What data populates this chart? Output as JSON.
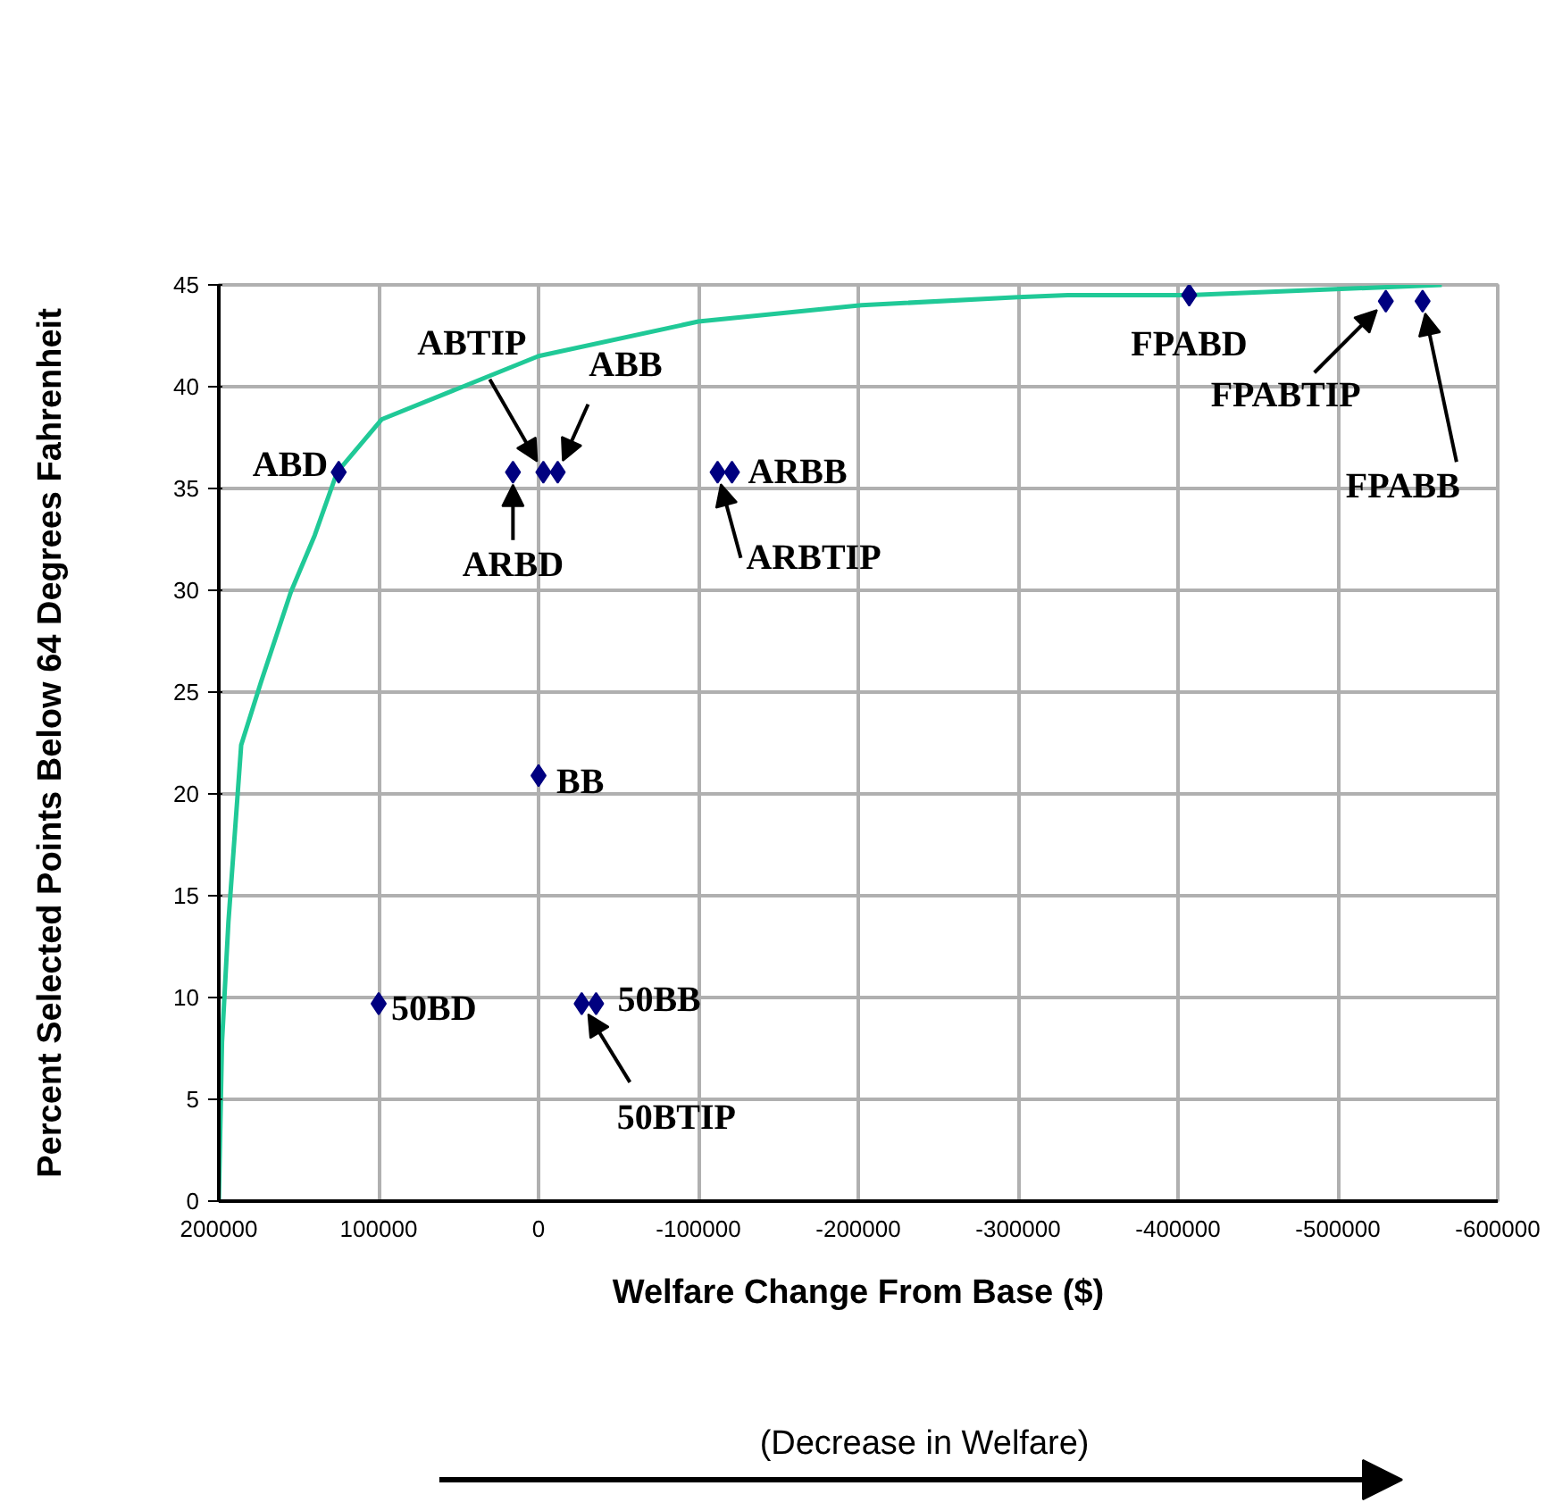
{
  "chart_data": {
    "type": "scatter",
    "xlabel": "Welfare Change From Base ($)",
    "ylabel": "Percent Selected Points Below 64 Degrees Fahrenheit",
    "xlim": [
      200000,
      -600000
    ],
    "ylim": [
      0,
      45
    ],
    "xticks": [
      200000,
      100000,
      0,
      -100000,
      -200000,
      -300000,
      -400000,
      -500000,
      -600000
    ],
    "yticks": [
      0,
      5,
      10,
      15,
      20,
      25,
      30,
      35,
      40,
      45
    ],
    "grid": true,
    "series": [
      {
        "type": "line",
        "color": "#20c997",
        "marker": "none",
        "x": [
          200000,
          198000,
          194000,
          186000,
          174000,
          155000,
          140000,
          126000,
          98000,
          0,
          -100000,
          -202000,
          -300000,
          -331000,
          -407000,
          -565000
        ],
        "values": [
          0,
          7.8,
          13.7,
          22.4,
          25.4,
          29.9,
          32.7,
          35.8,
          38.4,
          41.5,
          43.2,
          44.0,
          44.4,
          44.5,
          44.5,
          45.0
        ]
      },
      {
        "color": "#000080",
        "marker": "diamond",
        "x": [
          125000,
          16000,
          -3000,
          -12000,
          0,
          100000,
          -27000,
          -36000,
          -112000,
          -121000,
          -407000,
          -530000,
          -553000
        ],
        "values": [
          35.8,
          35.8,
          35.8,
          35.8,
          20.9,
          9.7,
          9.7,
          9.7,
          35.8,
          35.8,
          44.5,
          44.2,
          44.2
        ]
      }
    ],
    "annotations": [
      {
        "text": "ABD",
        "x": 125000,
        "y": 35.8
      },
      {
        "text": "ARBD",
        "x": 16000,
        "y": 35.8
      },
      {
        "text": "ABTIP",
        "x": -3000,
        "y": 35.8
      },
      {
        "text": "ABB",
        "x": -12000,
        "y": 35.8
      },
      {
        "text": "BB",
        "x": 0,
        "y": 20.9
      },
      {
        "text": "50BD",
        "x": 100000,
        "y": 9.7
      },
      {
        "text": "50BTIP",
        "x": -27000,
        "y": 9.7
      },
      {
        "text": "50BB",
        "x": -36000,
        "y": 9.7
      },
      {
        "text": "ARBTIP",
        "x": -112000,
        "y": 35.8
      },
      {
        "text": "ARBB",
        "x": -121000,
        "y": 35.8
      },
      {
        "text": "FPABD",
        "x": -407000,
        "y": 44.5
      },
      {
        "text": "FPABTIP",
        "x": -530000,
        "y": 44.2
      },
      {
        "text": "FPABB",
        "x": -553000,
        "y": 44.2
      },
      "(Decrease in Welfare)"
    ]
  }
}
